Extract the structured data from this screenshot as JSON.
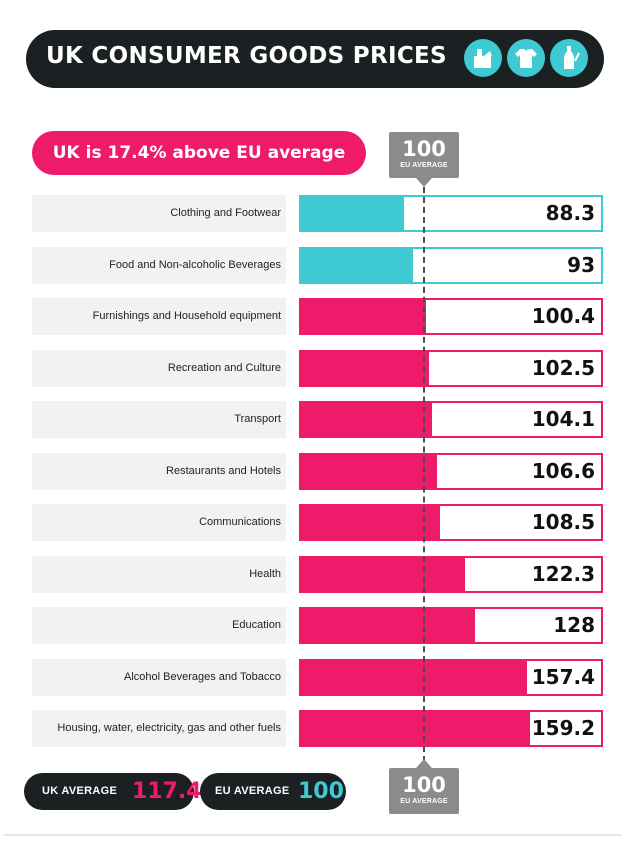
{
  "colors": {
    "pink": "#ee1a6a",
    "teal": "#3ec9d3",
    "dark": "#1b2023",
    "marker": "#8c8c8c"
  },
  "header": {
    "title": "UK CONSUMER GOODS PRICES",
    "icons": [
      "food-icon",
      "tshirt-icon",
      "bottle-icon"
    ]
  },
  "headline": "UK is 17.4% above EU average",
  "reference_marker": {
    "value": "100",
    "label": "EU AVERAGE"
  },
  "footer": {
    "uk_label": "UK AVERAGE",
    "uk_value": "117.4",
    "eu_label": "EU AVERAGE",
    "eu_value": "100"
  },
  "chart_data": {
    "type": "bar",
    "orientation": "horizontal",
    "reference_value": 100,
    "categories": [
      "Clothing and Footwear",
      "Food and Non-alcoholic Beverages",
      "Furnishings and Household equipment",
      "Recreation and Culture",
      "Transport",
      "Restaurants and Hotels",
      "Communications",
      "Health",
      "Education",
      "Alcohol Beverages and Tobacco",
      "Housing, water, electricity, gas and other fuels"
    ],
    "values": [
      88.3,
      93,
      100.4,
      102.5,
      104.1,
      106.6,
      108.5,
      122.3,
      128,
      157.4,
      159.2
    ],
    "value_labels": [
      "88.3",
      "93",
      "100.4",
      "102.5",
      "104.1",
      "106.6",
      "108.5",
      "122.3",
      "128",
      "157.4",
      "159.2"
    ],
    "below_reference_color": "#3ec9d3",
    "above_reference_color": "#ee1a6a"
  }
}
